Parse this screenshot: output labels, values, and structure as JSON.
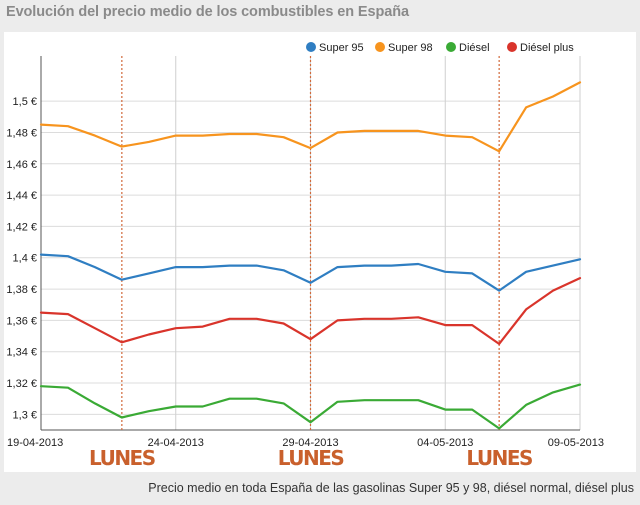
{
  "chart_data": {
    "type": "line",
    "title": "Evolución del precio medio de los combustibles en España",
    "caption": "Precio medio en toda España de las gasolinas Super 95 y 98, diésel normal, diésel plus",
    "xlabel": "",
    "ylabel": "",
    "ylim": [
      1.29,
      1.525
    ],
    "yticks": [
      {
        "value": 1.3,
        "label": "1,3 €"
      },
      {
        "value": 1.32,
        "label": "1,32 €"
      },
      {
        "value": 1.34,
        "label": "1,34 €"
      },
      {
        "value": 1.36,
        "label": "1,36 €"
      },
      {
        "value": 1.38,
        "label": "1,38 €"
      },
      {
        "value": 1.4,
        "label": "1,4 €"
      },
      {
        "value": 1.42,
        "label": "1,42 €"
      },
      {
        "value": 1.44,
        "label": "1,44 €"
      },
      {
        "value": 1.46,
        "label": "1,46 €"
      },
      {
        "value": 1.48,
        "label": "1,48 €"
      },
      {
        "value": 1.5,
        "label": "1,5 €"
      }
    ],
    "xrange": [
      0,
      20
    ],
    "xticks": [
      {
        "x": 0,
        "label": "19-04-2013"
      },
      {
        "x": 5,
        "label": "24-04-2013"
      },
      {
        "x": 10,
        "label": "29-04-2013"
      },
      {
        "x": 15,
        "label": "04-05-2013"
      },
      {
        "x": 20,
        "label": "09-05-2013"
      }
    ],
    "x": [
      0,
      1,
      2,
      3,
      4,
      5,
      6,
      7,
      8,
      9,
      10,
      11,
      12,
      13,
      14,
      15,
      16,
      17,
      18,
      19,
      20
    ],
    "series": [
      {
        "name": "Super 95",
        "color": "#2f7ec2",
        "values": [
          1.402,
          1.401,
          1.394,
          1.386,
          1.39,
          1.394,
          1.394,
          1.395,
          1.395,
          1.392,
          1.384,
          1.394,
          1.395,
          1.395,
          1.396,
          1.391,
          1.39,
          1.379,
          1.391,
          1.395,
          1.399
        ]
      },
      {
        "name": "Super 98",
        "color": "#f7941e",
        "values": [
          1.485,
          1.484,
          1.478,
          1.471,
          1.474,
          1.478,
          1.478,
          1.479,
          1.479,
          1.477,
          1.47,
          1.48,
          1.481,
          1.481,
          1.481,
          1.478,
          1.477,
          1.468,
          1.496,
          1.503,
          1.512
        ]
      },
      {
        "name": "Diésel",
        "color": "#3aaa35",
        "values": [
          1.318,
          1.317,
          1.307,
          1.298,
          1.302,
          1.305,
          1.305,
          1.31,
          1.31,
          1.307,
          1.295,
          1.308,
          1.309,
          1.309,
          1.309,
          1.303,
          1.303,
          1.291,
          1.306,
          1.314,
          1.319
        ]
      },
      {
        "name": "Diésel plus",
        "color": "#d9342b",
        "values": [
          1.365,
          1.364,
          1.355,
          1.346,
          1.351,
          1.355,
          1.356,
          1.361,
          1.361,
          1.358,
          1.348,
          1.36,
          1.361,
          1.361,
          1.362,
          1.357,
          1.357,
          1.345,
          1.367,
          1.379,
          1.387
        ]
      }
    ],
    "annotations": [
      {
        "x": 3,
        "label": "LUNES"
      },
      {
        "x": 10,
        "label": "LUNES"
      },
      {
        "x": 17,
        "label": "LUNES"
      }
    ],
    "legend": "top-right",
    "grid": true
  }
}
